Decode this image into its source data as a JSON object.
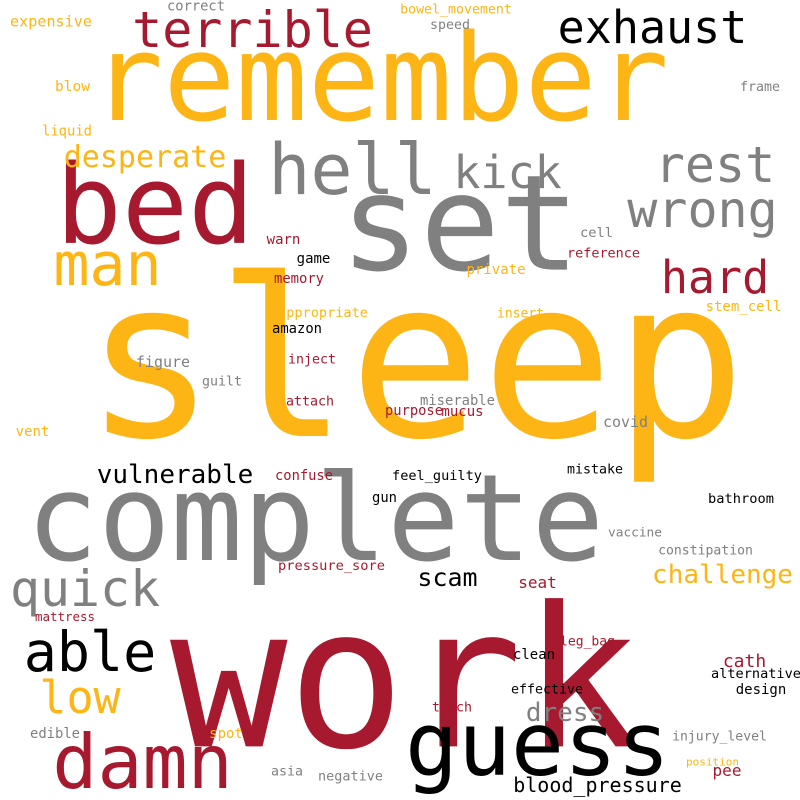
{
  "colors": {
    "gold": "#fdb515",
    "crimson": "#a6192e",
    "gray": "#808080",
    "black": "#000000"
  },
  "words": [
    {
      "text": "sleep",
      "color": "gold"
    },
    {
      "text": "work",
      "color": "crimson"
    },
    {
      "text": "remember",
      "color": "gold"
    },
    {
      "text": "complete",
      "color": "gray"
    },
    {
      "text": "set",
      "color": "gray"
    },
    {
      "text": "bed",
      "color": "crimson"
    },
    {
      "text": "hell",
      "color": "gray"
    },
    {
      "text": "guess",
      "color": "black"
    },
    {
      "text": "damn",
      "color": "crimson"
    },
    {
      "text": "terrible",
      "color": "crimson"
    },
    {
      "text": "man",
      "color": "gold"
    },
    {
      "text": "exhaust",
      "color": "black"
    },
    {
      "text": "wrong",
      "color": "gray"
    },
    {
      "text": "rest",
      "color": "gray"
    },
    {
      "text": "kick",
      "color": "gray"
    },
    {
      "text": "hard",
      "color": "crimson"
    },
    {
      "text": "able",
      "color": "black"
    },
    {
      "text": "quick",
      "color": "gray"
    },
    {
      "text": "low",
      "color": "gold"
    },
    {
      "text": "desperate",
      "color": "gold"
    },
    {
      "text": "vulnerable",
      "color": "black"
    },
    {
      "text": "challenge",
      "color": "gold"
    },
    {
      "text": "dress",
      "color": "gray"
    },
    {
      "text": "scam",
      "color": "black"
    },
    {
      "text": "blood_pressure",
      "color": "black"
    },
    {
      "text": "cath",
      "color": "crimson"
    },
    {
      "text": "seat",
      "color": "crimson"
    },
    {
      "text": "pee",
      "color": "crimson"
    },
    {
      "text": "expensive",
      "color": "gold"
    },
    {
      "text": "bowel_movement",
      "color": "gold"
    },
    {
      "text": "correct",
      "color": "gray"
    },
    {
      "text": "speed",
      "color": "gray"
    },
    {
      "text": "blow",
      "color": "gold"
    },
    {
      "text": "frame",
      "color": "gray"
    },
    {
      "text": "liquid",
      "color": "gold"
    },
    {
      "text": "cell",
      "color": "gray"
    },
    {
      "text": "warn",
      "color": "crimson"
    },
    {
      "text": "reference",
      "color": "crimson"
    },
    {
      "text": "game",
      "color": "black"
    },
    {
      "text": "private",
      "color": "gold"
    },
    {
      "text": "memory",
      "color": "crimson"
    },
    {
      "text": "appropriate",
      "color": "gold"
    },
    {
      "text": "insert",
      "color": "gold"
    },
    {
      "text": "stem_cell",
      "color": "gold"
    },
    {
      "text": "amazon",
      "color": "black"
    },
    {
      "text": "figure",
      "color": "gray"
    },
    {
      "text": "inject",
      "color": "crimson"
    },
    {
      "text": "guilt",
      "color": "gray"
    },
    {
      "text": "attach",
      "color": "crimson"
    },
    {
      "text": "miserable",
      "color": "gray"
    },
    {
      "text": "purpose",
      "color": "crimson"
    },
    {
      "text": "mucus",
      "color": "crimson"
    },
    {
      "text": "vent",
      "color": "gold"
    },
    {
      "text": "covid",
      "color": "gray"
    },
    {
      "text": "confuse",
      "color": "crimson"
    },
    {
      "text": "feel_guilty",
      "color": "black"
    },
    {
      "text": "mistake",
      "color": "black"
    },
    {
      "text": "gun",
      "color": "black"
    },
    {
      "text": "bathroom",
      "color": "black"
    },
    {
      "text": "vaccine",
      "color": "gray"
    },
    {
      "text": "constipation",
      "color": "gray"
    },
    {
      "text": "pressure_sore",
      "color": "crimson"
    },
    {
      "text": "mattress",
      "color": "crimson"
    },
    {
      "text": "leg_bag",
      "color": "crimson"
    },
    {
      "text": "clean",
      "color": "black"
    },
    {
      "text": "alternative",
      "color": "black"
    },
    {
      "text": "design",
      "color": "black"
    },
    {
      "text": "effective",
      "color": "black"
    },
    {
      "text": "trach",
      "color": "crimson"
    },
    {
      "text": "injury_level",
      "color": "gray"
    },
    {
      "text": "edible",
      "color": "gray"
    },
    {
      "text": "spot",
      "color": "gold"
    },
    {
      "text": "position",
      "color": "gold"
    },
    {
      "text": "asia",
      "color": "gray"
    },
    {
      "text": "negative",
      "color": "gray"
    }
  ]
}
